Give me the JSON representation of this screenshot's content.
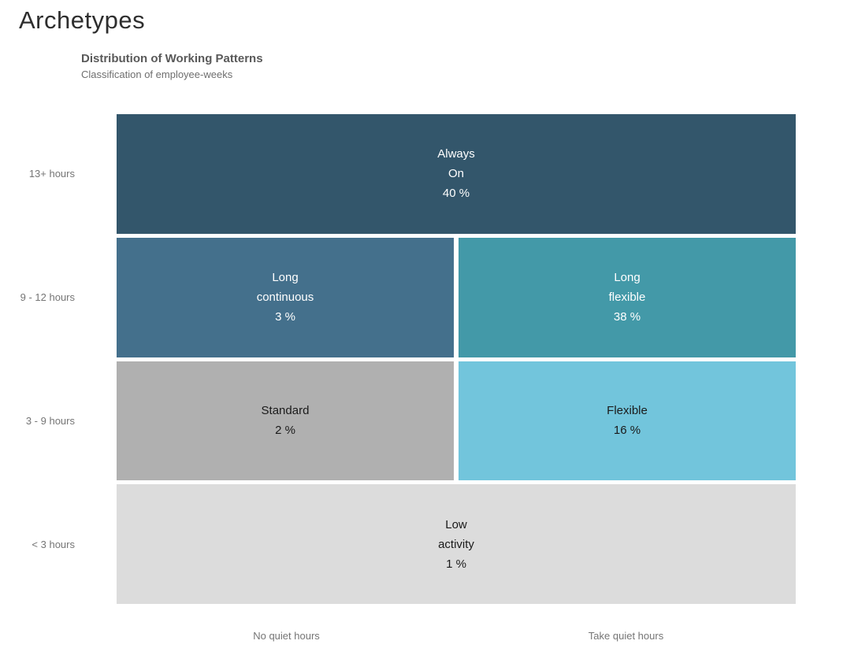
{
  "page": {
    "title": "Archetypes"
  },
  "chart_data": {
    "type": "mosaic",
    "title": "Distribution of Working Patterns",
    "subtitle": "Classification of employee-weeks",
    "unit": "%",
    "row_labels": [
      "13+ hours",
      "9 - 12 hours",
      "3 - 9 hours",
      "< 3 hours"
    ],
    "col_labels": [
      "No quiet hours",
      "Take quiet hours"
    ],
    "legend_position": "none",
    "grid": false,
    "cells": [
      {
        "label": "Always On",
        "row": "13+ hours",
        "col": "both",
        "value_pct": 40,
        "color": "#33566B",
        "text_color": "#FFFFFF",
        "lines": [
          "Always",
          "On",
          "40 %"
        ]
      },
      {
        "label": "Long continuous",
        "row": "9 - 12 hours",
        "col": "No quiet hours",
        "value_pct": 3,
        "color": "#44708C",
        "text_color": "#FFFFFF",
        "lines": [
          "Long",
          "continuous",
          "3 %"
        ]
      },
      {
        "label": "Long flexible",
        "row": "9 - 12 hours",
        "col": "Take quiet hours",
        "value_pct": 38,
        "color": "#4399A8",
        "text_color": "#FFFFFF",
        "lines": [
          "Long",
          "flexible",
          "38 %"
        ]
      },
      {
        "label": "Standard",
        "row": "3 - 9 hours",
        "col": "No quiet hours",
        "value_pct": 2,
        "color": "#B0B0B0",
        "text_color": "#1A1A1A",
        "lines": [
          "Standard",
          "2 %"
        ]
      },
      {
        "label": "Flexible",
        "row": "3 - 9 hours",
        "col": "Take quiet hours",
        "value_pct": 16,
        "color": "#72C5DC",
        "text_color": "#1A1A1A",
        "lines": [
          "Flexible",
          "16 %"
        ]
      },
      {
        "label": "Low activity",
        "row": "< 3 hours",
        "col": "both",
        "value_pct": 1,
        "color": "#DCDCDC",
        "text_color": "#1A1A1A",
        "lines": [
          "Low",
          "activity",
          "1 %"
        ]
      }
    ]
  }
}
